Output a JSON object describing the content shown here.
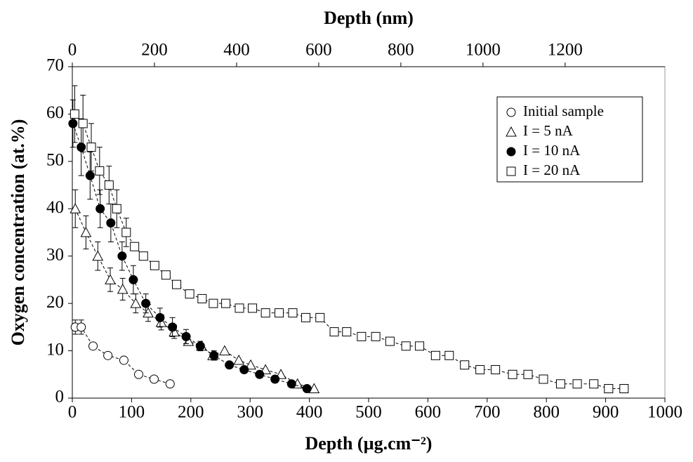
{
  "chart_data": {
    "type": "scatter",
    "title": "Depth (nm)",
    "xlabel": "Depth (µg.cm⁻²)",
    "ylabel": "Oxygen concentration (at.%)",
    "xlim": [
      0,
      1000
    ],
    "xticks": [
      0,
      100,
      200,
      300,
      400,
      500,
      600,
      700,
      800,
      900,
      1000
    ],
    "x2lim": [
      0,
      1443
    ],
    "x2ticks": [
      0,
      200,
      400,
      600,
      800,
      1000,
      1200
    ],
    "ylim": [
      0,
      70
    ],
    "yticks": [
      0,
      10,
      20,
      30,
      40,
      50,
      60,
      70
    ],
    "legend": "upper right",
    "series": [
      {
        "name": "Initial sample",
        "marker": "circle",
        "fill": "#ffffff",
        "x": [
          5,
          15,
          35,
          60,
          87,
          112,
          138,
          165
        ],
        "values": [
          15,
          15,
          11,
          9,
          8,
          5,
          4,
          3
        ],
        "errors": [
          1.5,
          1.5,
          null,
          null,
          null,
          null,
          null,
          null
        ]
      },
      {
        "name": "I = 5 nA",
        "marker": "triangle",
        "fill": "#ffffff",
        "x": [
          5,
          23,
          43,
          64,
          85,
          107,
          128,
          150,
          172,
          196,
          218,
          237,
          257,
          281,
          301,
          326,
          352,
          380,
          408
        ],
        "values": [
          40,
          35,
          30,
          25,
          23,
          20,
          18,
          16,
          14,
          12,
          11,
          9,
          10,
          8,
          7,
          6,
          5,
          3,
          2
        ],
        "errors": [
          4,
          3.5,
          3,
          2.5,
          2.3,
          2,
          1.8,
          1.6,
          1.4,
          null,
          null,
          null,
          null,
          null,
          null,
          null,
          null,
          null,
          null
        ]
      },
      {
        "name": "I = 10 nA",
        "marker": "circle",
        "fill": "#000000",
        "x": [
          1,
          15,
          30,
          47,
          65,
          84,
          103,
          124,
          148,
          169,
          192,
          216,
          239,
          265,
          290,
          316,
          342,
          370,
          396
        ],
        "values": [
          58,
          53,
          47,
          40,
          37,
          30,
          25,
          20,
          17,
          15,
          13,
          11,
          9,
          7,
          6,
          5,
          4,
          3,
          2
        ],
        "errors": [
          5,
          6,
          5,
          4,
          4,
          3,
          3,
          2,
          2,
          2,
          1.5,
          1,
          1,
          null,
          null,
          null,
          null,
          null,
          null
        ]
      },
      {
        "name": "I = 20 nA",
        "marker": "square",
        "fill": "#ffffff",
        "x": [
          4,
          18,
          32,
          46,
          62,
          75,
          91,
          105,
          120,
          139,
          158,
          176,
          198,
          219,
          238,
          259,
          282,
          304,
          326,
          349,
          372,
          394,
          418,
          442,
          463,
          488,
          512,
          536,
          563,
          586,
          613,
          636,
          662,
          688,
          714,
          743,
          769,
          795,
          824,
          852,
          880,
          905,
          931
        ],
        "values": [
          60,
          58,
          53,
          48,
          45,
          40,
          35,
          32,
          30,
          28,
          26,
          24,
          22,
          21,
          20,
          20,
          19,
          19,
          18,
          18,
          18,
          17,
          17,
          14,
          14,
          13,
          13,
          12,
          11,
          11,
          9,
          9,
          7,
          6,
          6,
          5,
          5,
          4,
          3,
          3,
          3,
          2,
          2
        ],
        "errors": [
          6,
          6,
          5,
          5,
          4,
          4,
          3,
          null,
          null,
          null,
          null,
          null,
          null,
          null,
          null,
          null,
          null,
          null,
          null,
          null,
          null,
          null,
          null,
          null,
          null,
          null,
          null,
          null,
          null,
          null,
          null,
          null,
          null,
          null,
          null,
          null,
          null,
          null,
          null,
          null,
          null,
          null,
          null
        ]
      }
    ]
  }
}
